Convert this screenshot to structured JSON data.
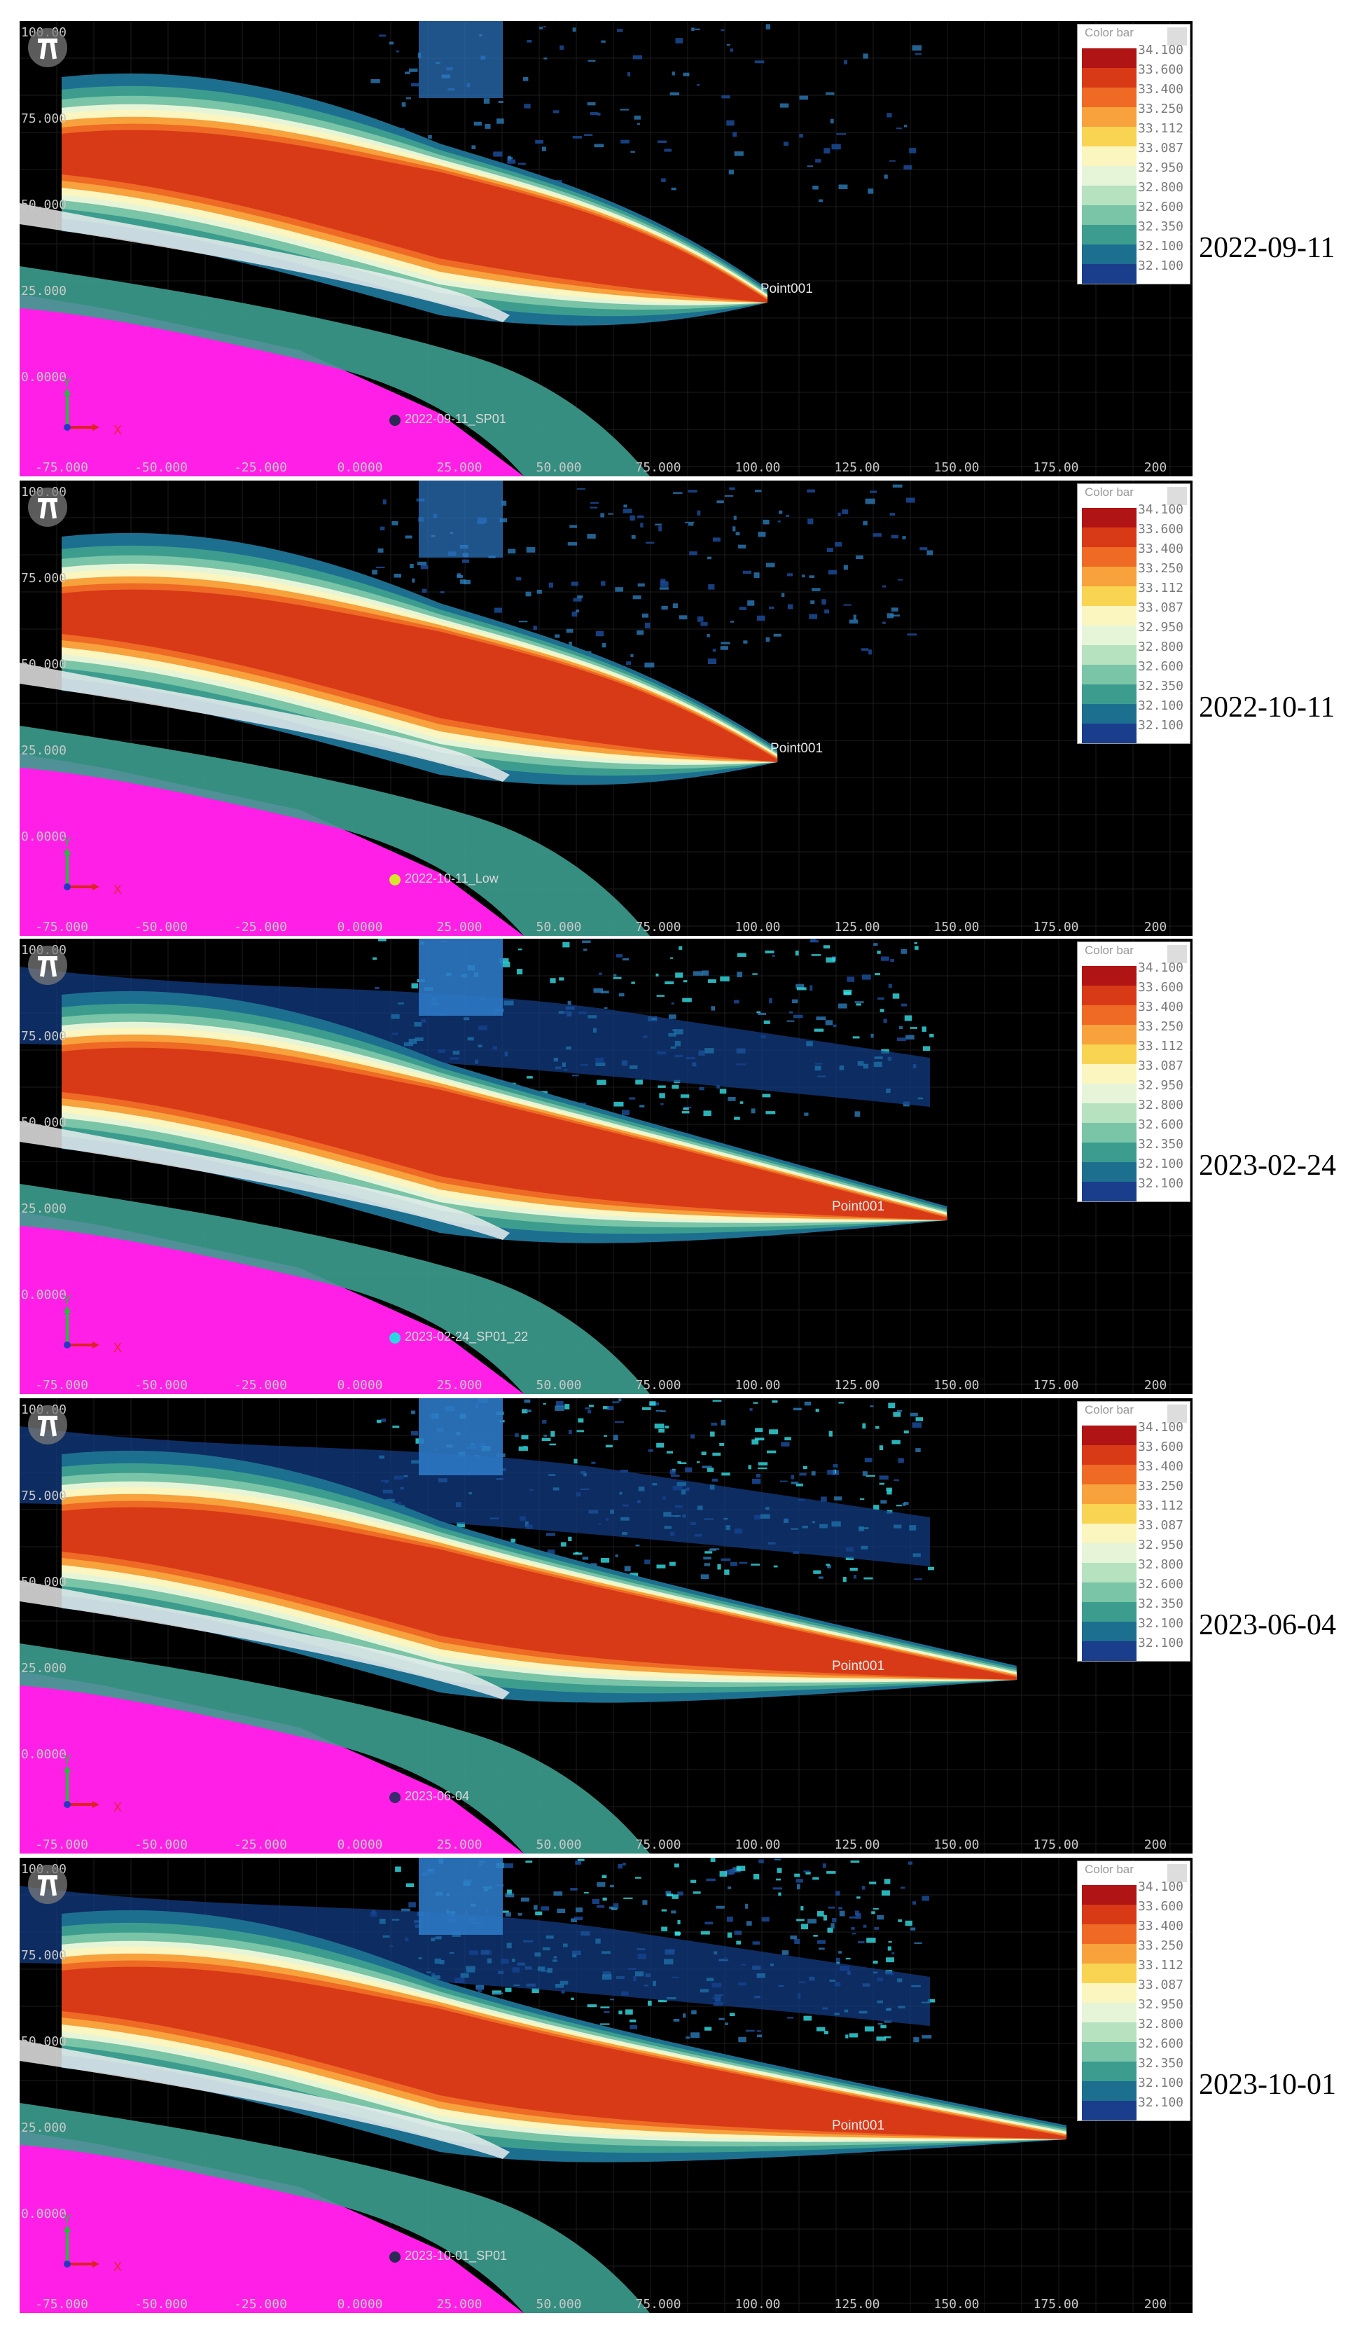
{
  "panels": [
    {
      "date": "2022-09-11",
      "station": "2022-09-11_SP01",
      "station_color": "#2a2a55",
      "point": "Point001",
      "plume_end": 0.75,
      "tilt": 0.0
    },
    {
      "date": "2022-10-11",
      "station": "2022-10-11_Low",
      "station_color": "#d7e62a",
      "point": "Point001",
      "plume_end": 0.76,
      "tilt": 0.0
    },
    {
      "date": "2023-02-24",
      "station": "2023-02-24_SP01_22",
      "station_color": "#2ad6e0",
      "point": "Point001",
      "plume_end": 0.93,
      "tilt": 0.0
    },
    {
      "date": "2023-06-04",
      "station": "2023-06-04",
      "station_color": "#3a2a70",
      "point": "Point001",
      "plume_end": 1.0,
      "tilt": 0.0
    },
    {
      "date": "2023-10-01",
      "station": "2023-10-01_SP01",
      "station_color": "#2a2a55",
      "point": "Point001",
      "plume_end": 1.05,
      "tilt": 0.0
    }
  ],
  "colorbar": {
    "title": "Color bar",
    "labels": [
      "34.100",
      "33.600",
      "33.400",
      "33.250",
      "33.112",
      "33.087",
      "32.950",
      "32.800",
      "32.600",
      "32.350",
      "32.100",
      "32.100"
    ],
    "colors": [
      "#b01414",
      "#d83a17",
      "#ee6a25",
      "#f7a23c",
      "#f9d453",
      "#fbf5c0",
      "#e6f5d8",
      "#b6e2c0",
      "#7ac4a7",
      "#3c9d8e",
      "#1d6f8f",
      "#1a3d8c"
    ]
  },
  "x_ticks": [
    "-75.000",
    "-50.000",
    "-25.000",
    "0.0000",
    "25.000",
    "50.000",
    "75.000",
    "100.00",
    "125.00",
    "150.00",
    "175.00",
    "200"
  ],
  "y_ticks": [
    "100.00",
    "75.000",
    "50.000",
    "25.000",
    "0.0000"
  ],
  "axis_labels": {
    "x": "X",
    "y": "Y"
  }
}
